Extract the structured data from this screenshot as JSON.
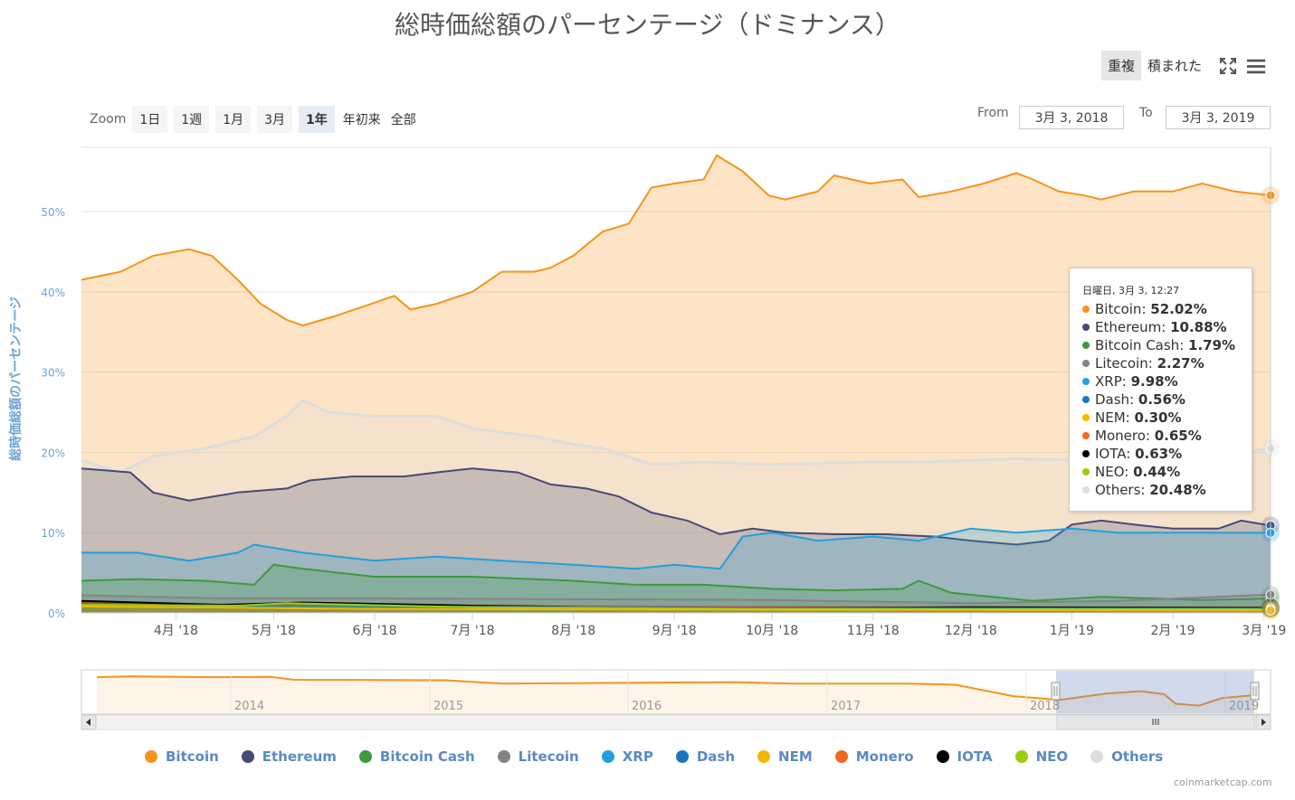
{
  "title": "総時価総額のパーセンテージ（ドミナンス）",
  "view_buttons": [
    "重複",
    "積まれた"
  ],
  "zoom": {
    "label": "Zoom",
    "buttons": [
      "1日",
      "1週",
      "1月",
      "3月",
      "1年",
      "年初来",
      "全部"
    ],
    "active": "1年"
  },
  "range": {
    "from_label": "From",
    "from_value": "3月 3, 2018",
    "to_label": "To",
    "to_value": "3月 3, 2019"
  },
  "colors": {
    "Bitcoin": "#f7931a",
    "Ethereum": "#454a75",
    "Bitcoin Cash": "#3d9a3d",
    "Litecoin": "#838383",
    "XRP": "#23a0db",
    "Dash": "#1c75bc",
    "NEM": "#f2b700",
    "Monero": "#f26822",
    "IOTA": "#000000",
    "NEO": "#9acd12",
    "Others": "#dddddd"
  },
  "tooltip": {
    "date": "日曜日, 3月 3, 12:27",
    "rows": [
      {
        "name": "Bitcoin",
        "value": "52.02%"
      },
      {
        "name": "Ethereum",
        "value": "10.88%"
      },
      {
        "name": "Bitcoin Cash",
        "value": "1.79%"
      },
      {
        "name": "Litecoin",
        "value": "2.27%"
      },
      {
        "name": "XRP",
        "value": "9.98%"
      },
      {
        "name": "Dash",
        "value": "0.56%"
      },
      {
        "name": "NEM",
        "value": "0.30%"
      },
      {
        "name": "Monero",
        "value": "0.65%"
      },
      {
        "name": "IOTA",
        "value": "0.63%"
      },
      {
        "name": "NEO",
        "value": "0.44%"
      },
      {
        "name": "Others",
        "value": "20.48%"
      }
    ]
  },
  "legend": [
    "Bitcoin",
    "Ethereum",
    "Bitcoin Cash",
    "Litecoin",
    "XRP",
    "Dash",
    "NEM",
    "Monero",
    "IOTA",
    "NEO",
    "Others"
  ],
  "credits": "coinmarketcap.com",
  "chart_data": {
    "type": "area",
    "ylabel": "総時価総額のパーセンテージ",
    "ylim": [
      0,
      58
    ],
    "yticks": [
      0,
      10,
      20,
      30,
      40,
      50
    ],
    "ytick_labels": [
      "0%",
      "10%",
      "20%",
      "30%",
      "40%",
      "50%"
    ],
    "xlim": [
      "2018-03-03",
      "2019-03-03"
    ],
    "xticks": [
      "2018-04-01",
      "2018-05-01",
      "2018-06-01",
      "2018-07-01",
      "2018-08-01",
      "2018-09-01",
      "2018-10-01",
      "2018-11-01",
      "2018-12-01",
      "2019-01-01",
      "2019-02-01",
      "2019-03-01"
    ],
    "xtick_labels": [
      "4月 '18",
      "5月 '18",
      "6月 '18",
      "7月 '18",
      "8月 '18",
      "9月 '18",
      "10月 '18",
      "11月 '18",
      "12月 '18",
      "1月 '19",
      "2月 '19",
      "3月 '19"
    ],
    "grid": true,
    "legend_position": "bottom",
    "series": [
      {
        "name": "Bitcoin",
        "points": [
          [
            "2018-03-03",
            41.5
          ],
          [
            "2018-03-15",
            42.5
          ],
          [
            "2018-03-25",
            44.5
          ],
          [
            "2018-04-05",
            45.3
          ],
          [
            "2018-04-12",
            44.5
          ],
          [
            "2018-04-20",
            41.5
          ],
          [
            "2018-04-27",
            38.5
          ],
          [
            "2018-05-05",
            36.5
          ],
          [
            "2018-05-10",
            35.8
          ],
          [
            "2018-05-20",
            37.0
          ],
          [
            "2018-05-31",
            38.5
          ],
          [
            "2018-06-07",
            39.5
          ],
          [
            "2018-06-12",
            37.8
          ],
          [
            "2018-06-20",
            38.5
          ],
          [
            "2018-07-01",
            40.0
          ],
          [
            "2018-07-10",
            42.5
          ],
          [
            "2018-07-20",
            42.5
          ],
          [
            "2018-07-25",
            43.0
          ],
          [
            "2018-08-01",
            44.5
          ],
          [
            "2018-08-10",
            47.5
          ],
          [
            "2018-08-18",
            48.5
          ],
          [
            "2018-08-25",
            53.0
          ],
          [
            "2018-09-01",
            53.5
          ],
          [
            "2018-09-10",
            54.0
          ],
          [
            "2018-09-14",
            57.0
          ],
          [
            "2018-09-22",
            55.0
          ],
          [
            "2018-09-30",
            52.0
          ],
          [
            "2018-10-05",
            51.5
          ],
          [
            "2018-10-15",
            52.5
          ],
          [
            "2018-10-20",
            54.5
          ],
          [
            "2018-10-31",
            53.5
          ],
          [
            "2018-11-10",
            54.0
          ],
          [
            "2018-11-15",
            51.8
          ],
          [
            "2018-11-25",
            52.5
          ],
          [
            "2018-12-05",
            53.5
          ],
          [
            "2018-12-15",
            54.8
          ],
          [
            "2018-12-20",
            54.0
          ],
          [
            "2018-12-28",
            52.5
          ],
          [
            "2019-01-05",
            52.0
          ],
          [
            "2019-01-10",
            51.5
          ],
          [
            "2019-01-20",
            52.5
          ],
          [
            "2019-02-01",
            52.5
          ],
          [
            "2019-02-10",
            53.5
          ],
          [
            "2019-02-20",
            52.5
          ],
          [
            "2019-03-03",
            52.02
          ]
        ]
      },
      {
        "name": "Others",
        "points": [
          [
            "2018-03-03",
            19.0
          ],
          [
            "2018-03-15",
            17.5
          ],
          [
            "2018-03-25",
            19.5
          ],
          [
            "2018-04-10",
            20.5
          ],
          [
            "2018-04-25",
            22.0
          ],
          [
            "2018-05-05",
            24.5
          ],
          [
            "2018-05-10",
            26.5
          ],
          [
            "2018-05-18",
            25.0
          ],
          [
            "2018-06-01",
            24.5
          ],
          [
            "2018-06-20",
            24.5
          ],
          [
            "2018-07-01",
            23.0
          ],
          [
            "2018-07-10",
            22.5
          ],
          [
            "2018-07-20",
            22.0
          ],
          [
            "2018-08-01",
            21.0
          ],
          [
            "2018-08-10",
            20.5
          ],
          [
            "2018-08-25",
            18.5
          ],
          [
            "2018-09-10",
            18.8
          ],
          [
            "2018-10-01",
            18.5
          ],
          [
            "2018-11-01",
            18.8
          ],
          [
            "2018-11-15",
            18.8
          ],
          [
            "2018-12-01",
            19.0
          ],
          [
            "2018-12-15",
            19.2
          ],
          [
            "2019-01-10",
            19.0
          ],
          [
            "2019-02-10",
            19.5
          ],
          [
            "2019-03-03",
            20.48
          ]
        ]
      },
      {
        "name": "Ethereum",
        "points": [
          [
            "2018-03-03",
            18.0
          ],
          [
            "2018-03-18",
            17.5
          ],
          [
            "2018-03-25",
            15.0
          ],
          [
            "2018-04-05",
            14.0
          ],
          [
            "2018-04-20",
            15.0
          ],
          [
            "2018-05-05",
            15.5
          ],
          [
            "2018-05-12",
            16.5
          ],
          [
            "2018-05-25",
            17.0
          ],
          [
            "2018-06-10",
            17.0
          ],
          [
            "2018-06-20",
            17.5
          ],
          [
            "2018-07-01",
            18.0
          ],
          [
            "2018-07-15",
            17.5
          ],
          [
            "2018-07-25",
            16.0
          ],
          [
            "2018-08-05",
            15.5
          ],
          [
            "2018-08-15",
            14.5
          ],
          [
            "2018-08-25",
            12.5
          ],
          [
            "2018-09-05",
            11.5
          ],
          [
            "2018-09-15",
            9.8
          ],
          [
            "2018-09-25",
            10.5
          ],
          [
            "2018-10-05",
            10.0
          ],
          [
            "2018-10-20",
            9.8
          ],
          [
            "2018-11-05",
            9.8
          ],
          [
            "2018-11-20",
            9.5
          ],
          [
            "2018-12-01",
            9.0
          ],
          [
            "2018-12-15",
            8.5
          ],
          [
            "2018-12-25",
            9.0
          ],
          [
            "2019-01-01",
            11.0
          ],
          [
            "2019-01-10",
            11.5
          ],
          [
            "2019-01-20",
            11.0
          ],
          [
            "2019-02-01",
            10.5
          ],
          [
            "2019-02-15",
            10.5
          ],
          [
            "2019-02-22",
            11.5
          ],
          [
            "2019-03-03",
            10.88
          ]
        ]
      },
      {
        "name": "XRP",
        "points": [
          [
            "2018-03-03",
            7.5
          ],
          [
            "2018-03-20",
            7.5
          ],
          [
            "2018-04-05",
            6.5
          ],
          [
            "2018-04-20",
            7.5
          ],
          [
            "2018-04-25",
            8.5
          ],
          [
            "2018-05-10",
            7.5
          ],
          [
            "2018-06-01",
            6.5
          ],
          [
            "2018-06-20",
            7.0
          ],
          [
            "2018-07-10",
            6.5
          ],
          [
            "2018-08-01",
            6.0
          ],
          [
            "2018-08-20",
            5.5
          ],
          [
            "2018-09-01",
            6.0
          ],
          [
            "2018-09-15",
            5.5
          ],
          [
            "2018-09-22",
            9.5
          ],
          [
            "2018-10-01",
            10.0
          ],
          [
            "2018-10-15",
            9.0
          ],
          [
            "2018-11-01",
            9.5
          ],
          [
            "2018-11-15",
            9.0
          ],
          [
            "2018-12-01",
            10.5
          ],
          [
            "2018-12-15",
            10.0
          ],
          [
            "2019-01-01",
            10.5
          ],
          [
            "2019-01-15",
            10.0
          ],
          [
            "2019-02-10",
            10.0
          ],
          [
            "2019-03-03",
            9.98
          ]
        ]
      },
      {
        "name": "Bitcoin Cash",
        "points": [
          [
            "2018-03-03",
            4.0
          ],
          [
            "2018-03-20",
            4.2
          ],
          [
            "2018-04-10",
            4.0
          ],
          [
            "2018-04-25",
            3.5
          ],
          [
            "2018-05-01",
            6.0
          ],
          [
            "2018-05-10",
            5.5
          ],
          [
            "2018-06-01",
            4.5
          ],
          [
            "2018-07-01",
            4.5
          ],
          [
            "2018-08-01",
            4.0
          ],
          [
            "2018-08-20",
            3.5
          ],
          [
            "2018-09-10",
            3.5
          ],
          [
            "2018-10-01",
            3.0
          ],
          [
            "2018-10-20",
            2.8
          ],
          [
            "2018-11-10",
            3.0
          ],
          [
            "2018-11-15",
            4.0
          ],
          [
            "2018-11-25",
            2.5
          ],
          [
            "2018-12-20",
            1.5
          ],
          [
            "2019-01-10",
            2.0
          ],
          [
            "2019-02-10",
            1.6
          ],
          [
            "2019-03-03",
            1.79
          ]
        ]
      },
      {
        "name": "Litecoin",
        "points": [
          [
            "2018-03-03",
            2.2
          ],
          [
            "2018-04-15",
            1.8
          ],
          [
            "2018-06-01",
            1.8
          ],
          [
            "2018-08-01",
            1.7
          ],
          [
            "2018-10-01",
            1.6
          ],
          [
            "2018-12-01",
            1.2
          ],
          [
            "2019-01-15",
            1.5
          ],
          [
            "2019-02-15",
            2.0
          ],
          [
            "2019-03-03",
            2.27
          ]
        ]
      },
      {
        "name": "Monero",
        "points": [
          [
            "2018-03-03",
            1.2
          ],
          [
            "2018-06-01",
            1.0
          ],
          [
            "2018-09-01",
            0.8
          ],
          [
            "2018-12-01",
            0.7
          ],
          [
            "2019-03-03",
            0.65
          ]
        ]
      },
      {
        "name": "IOTA",
        "points": [
          [
            "2018-03-03",
            1.5
          ],
          [
            "2018-04-15",
            1.0
          ],
          [
            "2018-05-10",
            1.3
          ],
          [
            "2018-07-01",
            0.9
          ],
          [
            "2018-09-01",
            0.6
          ],
          [
            "2018-12-01",
            0.7
          ],
          [
            "2019-03-03",
            0.63
          ]
        ]
      },
      {
        "name": "Dash",
        "points": [
          [
            "2018-03-03",
            1.0
          ],
          [
            "2018-06-01",
            0.8
          ],
          [
            "2018-09-01",
            0.7
          ],
          [
            "2018-12-01",
            0.6
          ],
          [
            "2019-03-03",
            0.56
          ]
        ]
      },
      {
        "name": "NEO",
        "points": [
          [
            "2018-03-03",
            1.0
          ],
          [
            "2018-04-20",
            0.9
          ],
          [
            "2018-05-05",
            1.2
          ],
          [
            "2018-07-01",
            0.7
          ],
          [
            "2018-10-01",
            0.5
          ],
          [
            "2019-03-03",
            0.44
          ]
        ]
      },
      {
        "name": "NEM",
        "points": [
          [
            "2018-03-03",
            0.8
          ],
          [
            "2018-06-01",
            0.5
          ],
          [
            "2018-09-01",
            0.4
          ],
          [
            "2019-03-03",
            0.3
          ]
        ]
      }
    ]
  },
  "navigator": {
    "xtick_labels": [
      "2014",
      "2015",
      "2016",
      "2017",
      "2018",
      "2019"
    ]
  }
}
